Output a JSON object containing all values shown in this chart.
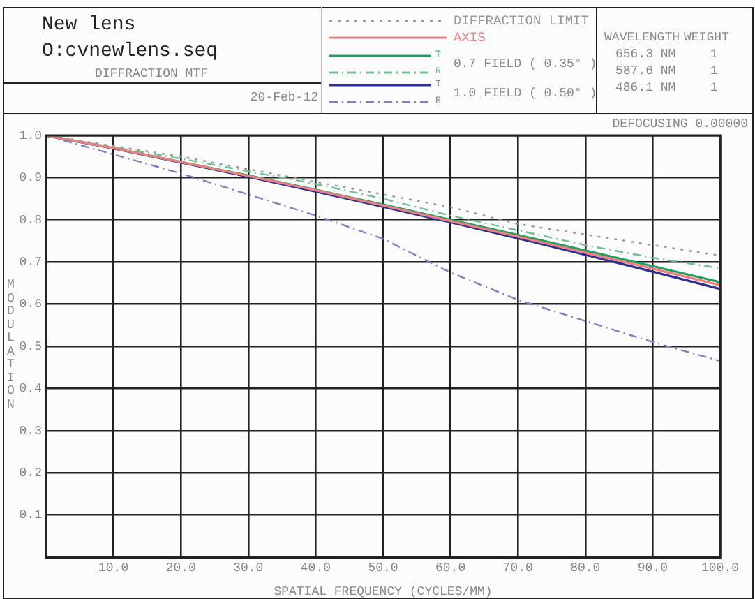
{
  "chart_data": {
    "type": "line",
    "title": "New lens",
    "subtitle": "O:cvnewlens.seq",
    "xlabel": "SPATIAL FREQUENCY (CYCLES/MM)",
    "ylabel": "MODULATION",
    "x": [
      0,
      10,
      20,
      30,
      40,
      50,
      60,
      70,
      80,
      90,
      100
    ],
    "series": [
      {
        "name": "DIFFRACTION LIMIT",
        "color": "#999999",
        "line_style": "dotted",
        "values": [
          1,
          0.975,
          0.95,
          0.92,
          0.89,
          0.86,
          0.83,
          0.79,
          0.765,
          0.74,
          0.715
        ]
      },
      {
        "name": "AXIS",
        "color": "#f08080",
        "line_style": "solid",
        "values": [
          1,
          0.97,
          0.937,
          0.904,
          0.87,
          0.834,
          0.797,
          0.76,
          0.722,
          0.684,
          0.645
        ]
      },
      {
        "name": "T",
        "color": "#20a060",
        "line_style": "solid",
        "values": [
          1,
          0.97,
          0.937,
          0.905,
          0.871,
          0.836,
          0.8,
          0.764,
          0.727,
          0.69,
          0.652
        ]
      },
      {
        "name": "R",
        "color": "#70c090",
        "line_style": "dashed",
        "values": [
          1,
          0.972,
          0.945,
          0.915,
          0.885,
          0.85,
          0.81,
          0.775,
          0.74,
          0.71,
          0.685
        ]
      },
      {
        "name": "T",
        "color": "#303090",
        "line_style": "solid",
        "values": [
          1,
          0.969,
          0.936,
          0.902,
          0.867,
          0.831,
          0.794,
          0.756,
          0.717,
          0.677,
          0.636
        ]
      },
      {
        "name": "R",
        "color": "#8080c0",
        "line_style": "dashed",
        "values": [
          1,
          0.955,
          0.91,
          0.86,
          0.81,
          0.755,
          0.675,
          0.61,
          0.56,
          0.51,
          0.465
        ]
      }
    ],
    "xlim": [
      0,
      100
    ],
    "xticks": [
      {
        "value": 10,
        "label": "10.0"
      },
      {
        "value": 20,
        "label": "20.0"
      },
      {
        "value": 30,
        "label": "30.0"
      },
      {
        "value": 40,
        "label": "40.0"
      },
      {
        "value": 50,
        "label": "50.0"
      },
      {
        "value": 60,
        "label": "60.0"
      },
      {
        "value": 70,
        "label": "70.0"
      },
      {
        "value": 80,
        "label": "80.0"
      },
      {
        "value": 90,
        "label": "90.0"
      },
      {
        "value": 100,
        "label": "100.0"
      }
    ],
    "ylim": [
      0,
      1
    ],
    "yticks": [
      0.1,
      0.2,
      0.3,
      0.4,
      0.5,
      0.6,
      0.7,
      0.8,
      0.9,
      {
        "value": 1,
        "label": "1.0"
      }
    ],
    "grid": true,
    "legend": "top",
    "marker": "none",
    "annotations": [
      "DIFFRACTION MTF",
      "20-Feb-12",
      "0.7 FIELD ( 0.35° )",
      "1.0 FIELD ( 0.50° )",
      "DEFOCUSING 0.00000",
      "WAVELENGTH",
      "WEIGHT",
      "656.3 NM",
      "1",
      "587.6 NM",
      "1",
      "486.1 NM",
      "1"
    ]
  }
}
